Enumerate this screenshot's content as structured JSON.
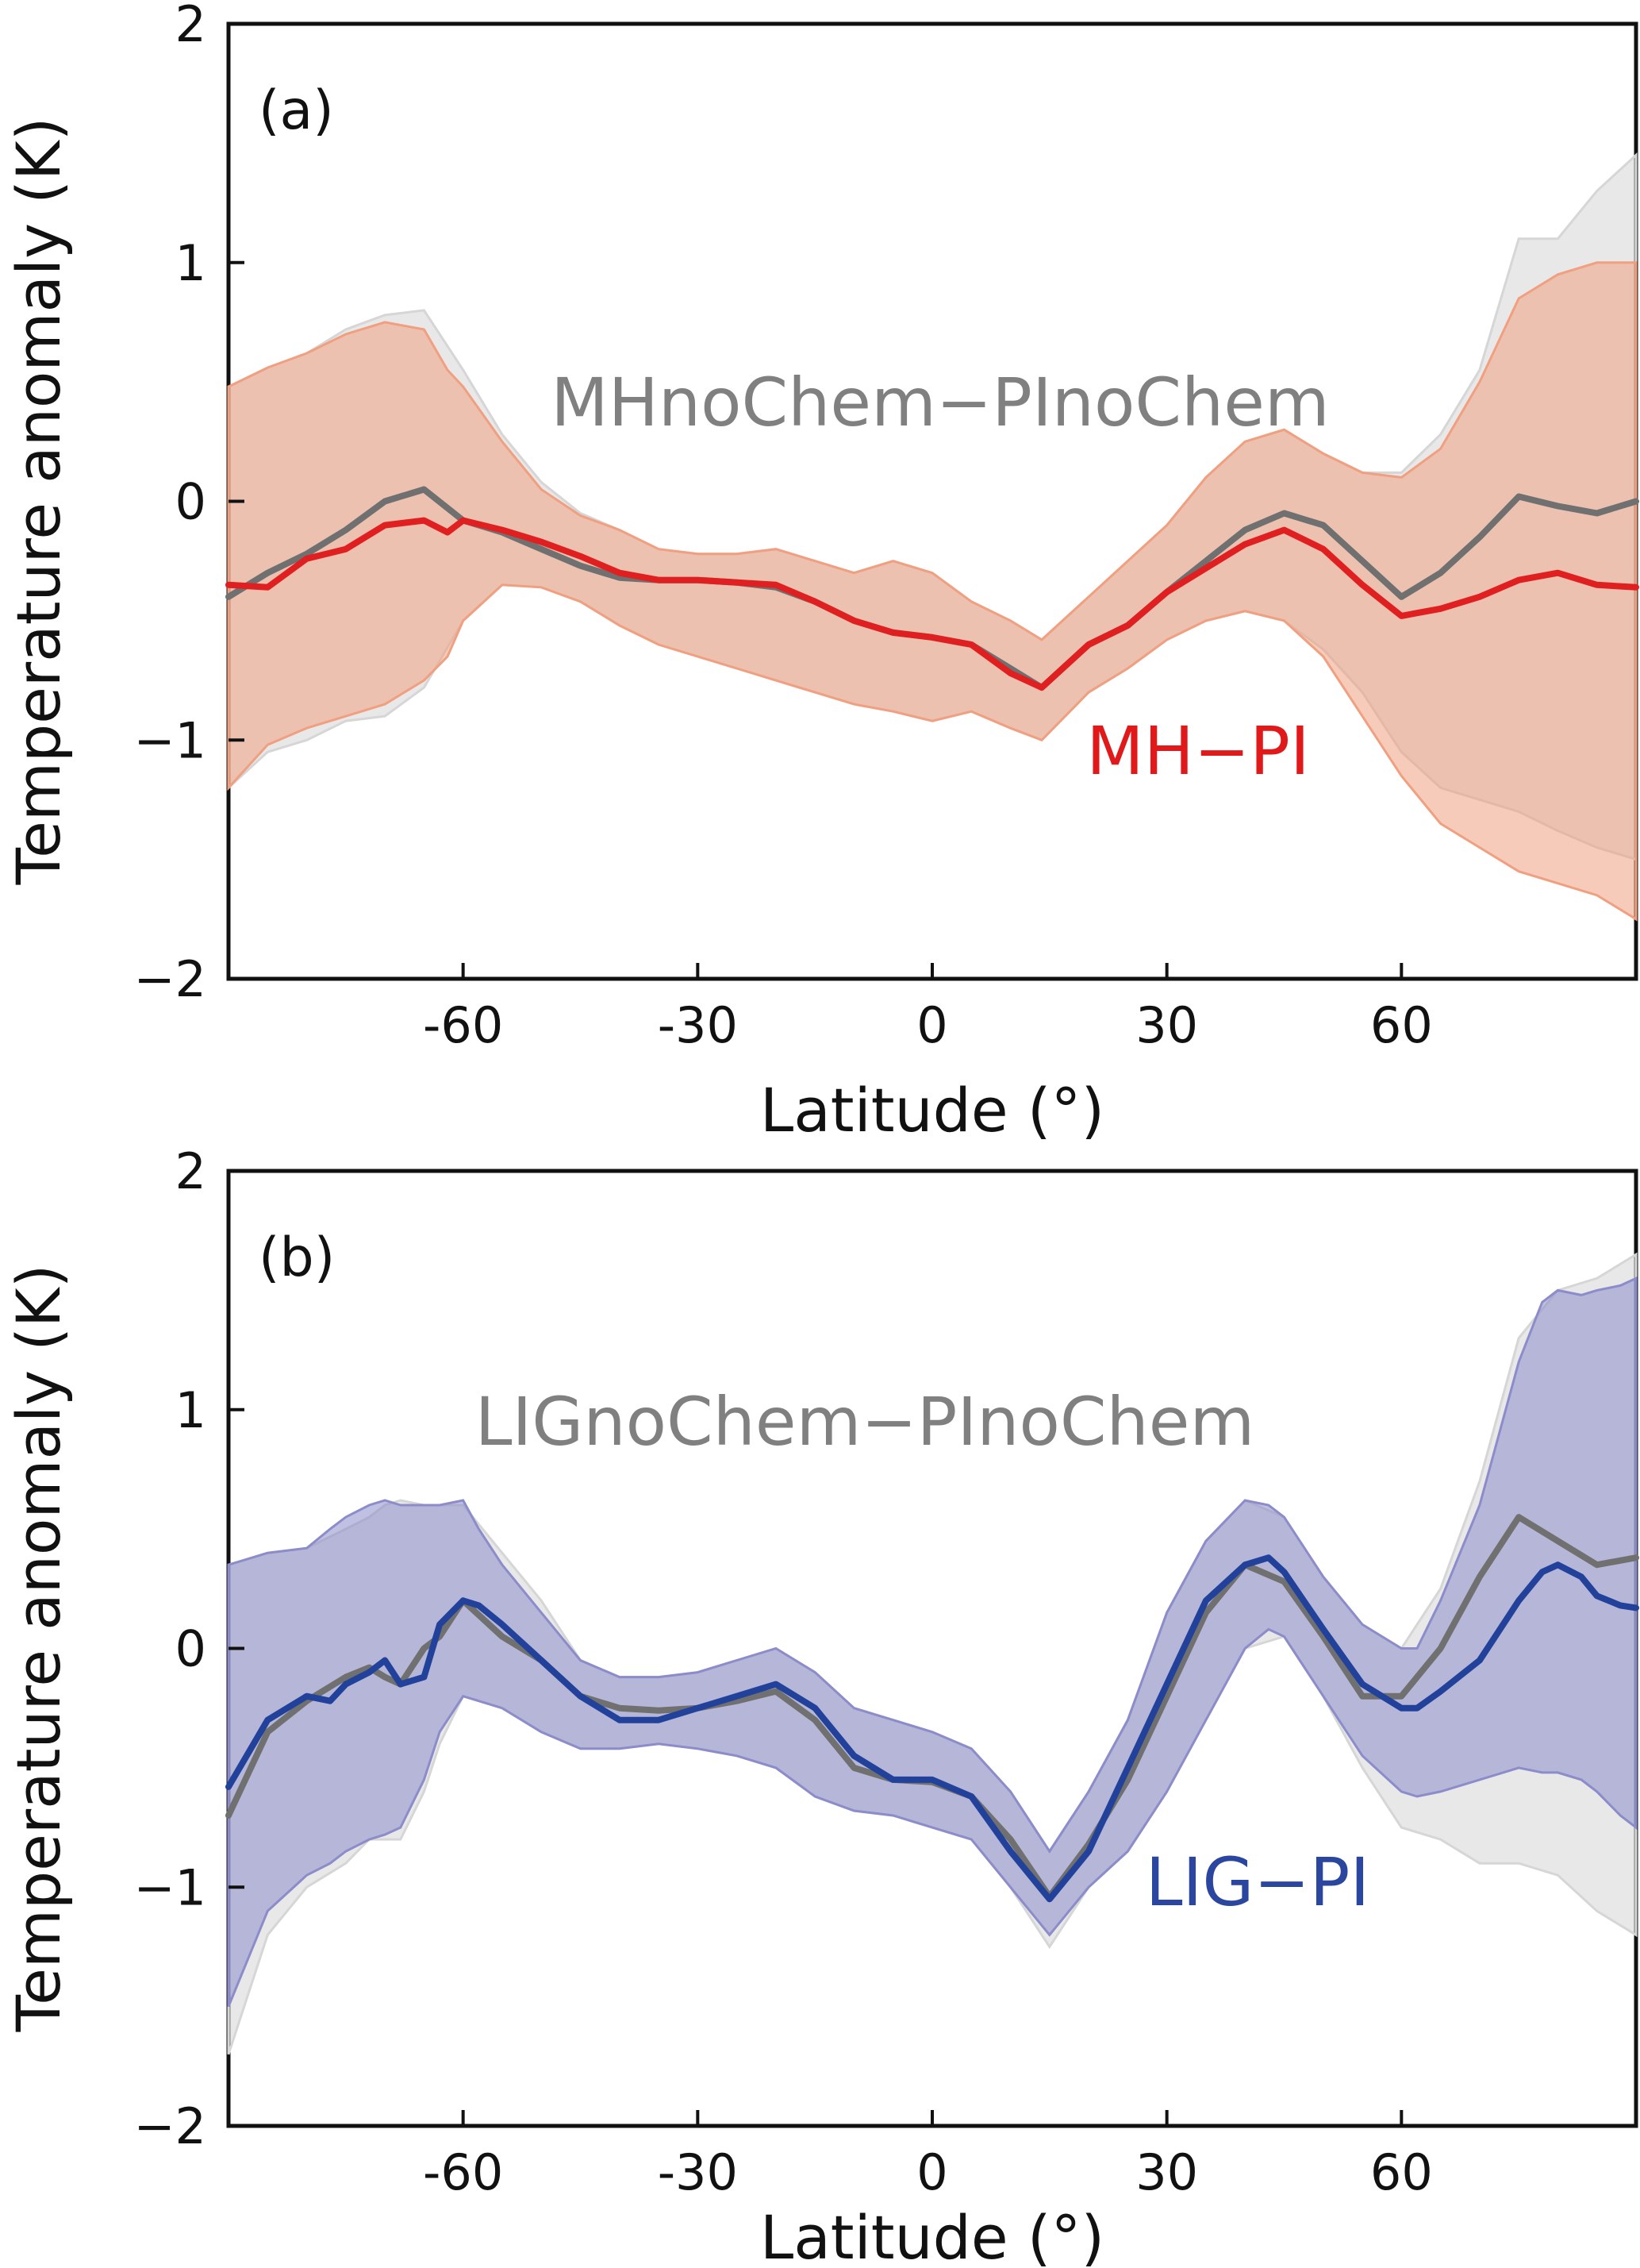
{
  "chart_data": [
    {
      "type": "line",
      "panel_label": "(a)",
      "xlabel": "Latitude (°)",
      "ylabel": "Temperature anomaly (K)",
      "xlim": [
        -90,
        90
      ],
      "ylim": [
        -2,
        2
      ],
      "x_ticks": [
        -60,
        -30,
        0,
        30,
        60
      ],
      "x_tick_labels": [
        "-60",
        "-30",
        "0",
        "30",
        "60"
      ],
      "y_ticks": [
        -2,
        -1,
        0,
        1,
        2
      ],
      "y_tick_labels": [
        "−2",
        "−1",
        "0",
        "1",
        "2"
      ],
      "series": [
        {
          "name": "MHnoChem−PInoChem",
          "label": "MHnoChem−PInoChem",
          "line_color": "#707070",
          "fill_color": "#d6d6d6",
          "label_color": "#808080",
          "label_at": [
            -27,
            0.4
          ],
          "x": [
            -90,
            -85,
            -80,
            -75,
            -70,
            -65,
            -60,
            -55,
            -50,
            -45,
            -40,
            -35,
            -30,
            -25,
            -20,
            -15,
            -10,
            -5,
            0,
            5,
            10,
            14,
            20,
            25,
            30,
            35,
            40,
            45,
            50,
            55,
            60,
            65,
            70,
            75,
            80,
            85,
            90
          ],
          "values": [
            -0.4,
            -0.3,
            -0.22,
            -0.12,
            0.0,
            0.05,
            -0.08,
            -0.13,
            -0.2,
            -0.27,
            -0.32,
            -0.33,
            -0.33,
            -0.34,
            -0.36,
            -0.42,
            -0.5,
            -0.55,
            -0.57,
            -0.6,
            -0.7,
            -0.78,
            -0.6,
            -0.52,
            -0.38,
            -0.25,
            -0.12,
            -0.05,
            -0.1,
            -0.25,
            -0.4,
            -0.3,
            -0.15,
            0.02,
            -0.02,
            -0.05,
            0.0
          ],
          "upper": [
            0.48,
            0.56,
            0.62,
            0.72,
            0.78,
            0.8,
            0.55,
            0.28,
            0.08,
            -0.05,
            -0.12,
            -0.2,
            -0.22,
            -0.22,
            -0.2,
            -0.25,
            -0.3,
            -0.25,
            -0.3,
            -0.42,
            -0.5,
            -0.58,
            -0.4,
            -0.25,
            -0.1,
            0.1,
            0.25,
            0.3,
            0.2,
            0.12,
            0.12,
            0.28,
            0.55,
            1.1,
            1.1,
            1.3,
            1.45
          ],
          "lower": [
            -1.2,
            -1.05,
            -1.0,
            -0.92,
            -0.9,
            -0.78,
            -0.5,
            -0.35,
            -0.36,
            -0.42,
            -0.52,
            -0.6,
            -0.65,
            -0.7,
            -0.75,
            -0.8,
            -0.85,
            -0.88,
            -0.92,
            -0.88,
            -0.95,
            -1.0,
            -0.8,
            -0.7,
            -0.58,
            -0.5,
            -0.46,
            -0.5,
            -0.62,
            -0.8,
            -1.05,
            -1.2,
            -1.25,
            -1.3,
            -1.38,
            -1.45,
            -1.5
          ]
        },
        {
          "name": "MH−PI",
          "label": "MH−PI",
          "line_color": "#e02020",
          "fill_color": "#f0a080",
          "label_color": "#e01a1a",
          "label_at": [
            17,
            -1.06
          ],
          "x": [
            -90,
            -85,
            -80,
            -75,
            -70,
            -65,
            -62,
            -60,
            -55,
            -50,
            -45,
            -40,
            -35,
            -30,
            -25,
            -20,
            -15,
            -10,
            -5,
            0,
            5,
            10,
            14,
            20,
            25,
            30,
            35,
            40,
            45,
            50,
            55,
            60,
            65,
            70,
            75,
            80,
            85,
            90
          ],
          "values": [
            -0.35,
            -0.36,
            -0.24,
            -0.2,
            -0.1,
            -0.08,
            -0.13,
            -0.08,
            -0.12,
            -0.17,
            -0.23,
            -0.3,
            -0.33,
            -0.33,
            -0.34,
            -0.35,
            -0.42,
            -0.5,
            -0.55,
            -0.57,
            -0.6,
            -0.72,
            -0.78,
            -0.6,
            -0.52,
            -0.38,
            -0.28,
            -0.18,
            -0.12,
            -0.2,
            -0.35,
            -0.48,
            -0.45,
            -0.4,
            -0.33,
            -0.3,
            -0.35,
            -0.36
          ],
          "upper": [
            0.48,
            0.56,
            0.62,
            0.7,
            0.75,
            0.72,
            0.55,
            0.48,
            0.25,
            0.05,
            -0.06,
            -0.12,
            -0.2,
            -0.22,
            -0.22,
            -0.2,
            -0.25,
            -0.3,
            -0.25,
            -0.3,
            -0.42,
            -0.5,
            -0.58,
            -0.4,
            -0.25,
            -0.1,
            0.1,
            0.25,
            0.3,
            0.2,
            0.12,
            0.1,
            0.22,
            0.5,
            0.85,
            0.95,
            1.0,
            1.0
          ],
          "lower": [
            -1.2,
            -1.02,
            -0.95,
            -0.9,
            -0.85,
            -0.75,
            -0.65,
            -0.5,
            -0.35,
            -0.36,
            -0.42,
            -0.52,
            -0.6,
            -0.65,
            -0.7,
            -0.75,
            -0.8,
            -0.85,
            -0.88,
            -0.92,
            -0.88,
            -0.95,
            -1.0,
            -0.8,
            -0.7,
            -0.58,
            -0.5,
            -0.46,
            -0.5,
            -0.65,
            -0.9,
            -1.15,
            -1.35,
            -1.45,
            -1.55,
            -1.6,
            -1.65,
            -1.75
          ]
        }
      ]
    },
    {
      "type": "line",
      "panel_label": "(b)",
      "xlabel": "Latitude (°)",
      "ylabel": "Temperature anomaly (K)",
      "xlim": [
        -90,
        90
      ],
      "ylim": [
        -2,
        2
      ],
      "x_ticks": [
        -60,
        -30,
        0,
        30,
        60
      ],
      "x_tick_labels": [
        "-60",
        "-30",
        "0",
        "30",
        "60"
      ],
      "y_ticks": [
        -2,
        -1,
        0,
        1,
        2
      ],
      "y_tick_labels": [
        "−2",
        "−1",
        "0",
        "1",
        "2"
      ],
      "series": [
        {
          "name": "LIGnoChem−PInoChem",
          "label": "LIGnoChem−PInoChem",
          "line_color": "#707070",
          "fill_color": "#d6d6d6",
          "label_color": "#808080",
          "label_at": [
            -31,
            0.8
          ],
          "x": [
            -90,
            -85,
            -80,
            -75,
            -72,
            -70,
            -68,
            -65,
            -63,
            -60,
            -55,
            -50,
            -45,
            -40,
            -35,
            -30,
            -25,
            -20,
            -15,
            -10,
            -5,
            0,
            5,
            10,
            15,
            20,
            25,
            30,
            35,
            40,
            45,
            50,
            55,
            60,
            65,
            70,
            75,
            80,
            85,
            90
          ],
          "values": [
            -0.7,
            -0.35,
            -0.22,
            -0.12,
            -0.08,
            -0.12,
            -0.15,
            0.0,
            0.05,
            0.2,
            0.05,
            -0.05,
            -0.2,
            -0.25,
            -0.26,
            -0.25,
            -0.22,
            -0.18,
            -0.3,
            -0.5,
            -0.55,
            -0.56,
            -0.62,
            -0.8,
            -1.04,
            -0.82,
            -0.55,
            -0.2,
            0.15,
            0.35,
            0.28,
            0.05,
            -0.2,
            -0.2,
            0.0,
            0.3,
            0.55,
            0.45,
            0.35,
            0.38
          ],
          "upper": [
            0.35,
            0.4,
            0.42,
            0.5,
            0.55,
            0.6,
            0.62,
            0.6,
            0.6,
            0.6,
            0.4,
            0.2,
            -0.05,
            -0.12,
            -0.12,
            -0.1,
            -0.05,
            0.0,
            -0.1,
            -0.25,
            -0.3,
            -0.35,
            -0.42,
            -0.6,
            -0.85,
            -0.6,
            -0.3,
            0.15,
            0.45,
            0.62,
            0.55,
            0.3,
            0.1,
            0.0,
            0.25,
            0.7,
            1.3,
            1.5,
            1.55,
            1.65
          ],
          "lower": [
            -1.7,
            -1.2,
            -1.0,
            -0.9,
            -0.8,
            -0.8,
            -0.8,
            -0.6,
            -0.4,
            -0.2,
            -0.25,
            -0.35,
            -0.42,
            -0.42,
            -0.4,
            -0.42,
            -0.45,
            -0.5,
            -0.62,
            -0.68,
            -0.7,
            -0.75,
            -0.8,
            -1.0,
            -1.25,
            -1.0,
            -0.85,
            -0.6,
            -0.3,
            0.0,
            0.05,
            -0.2,
            -0.5,
            -0.75,
            -0.8,
            -0.9,
            -0.9,
            -0.95,
            -1.1,
            -1.2
          ]
        },
        {
          "name": "LIG−PI",
          "label": "LIG−PI",
          "line_color": "#22419a",
          "fill_color": "#8c8cca",
          "label_color": "#2a469e",
          "label_at": [
            19,
            -1.0
          ],
          "x": [
            -90,
            -85,
            -80,
            -77,
            -75,
            -72,
            -70,
            -68,
            -65,
            -63,
            -60,
            -58,
            -55,
            -50,
            -45,
            -40,
            -35,
            -30,
            -25,
            -20,
            -15,
            -10,
            -5,
            0,
            5,
            10,
            15,
            20,
            25,
            30,
            35,
            40,
            43,
            45,
            50,
            55,
            60,
            62,
            65,
            70,
            75,
            78,
            80,
            83,
            85,
            88,
            90
          ],
          "values": [
            -0.58,
            -0.3,
            -0.2,
            -0.22,
            -0.15,
            -0.1,
            -0.05,
            -0.15,
            -0.12,
            0.1,
            0.2,
            0.18,
            0.1,
            -0.05,
            -0.2,
            -0.3,
            -0.3,
            -0.25,
            -0.2,
            -0.15,
            -0.25,
            -0.45,
            -0.55,
            -0.55,
            -0.62,
            -0.85,
            -1.05,
            -0.85,
            -0.5,
            -0.15,
            0.2,
            0.35,
            0.38,
            0.32,
            0.08,
            -0.15,
            -0.25,
            -0.25,
            -0.18,
            -0.05,
            0.2,
            0.32,
            0.35,
            0.3,
            0.22,
            0.18,
            0.17
          ],
          "upper": [
            0.35,
            0.4,
            0.42,
            0.5,
            0.55,
            0.6,
            0.62,
            0.6,
            0.6,
            0.6,
            0.62,
            0.5,
            0.35,
            0.15,
            -0.05,
            -0.12,
            -0.12,
            -0.1,
            -0.05,
            0.0,
            -0.1,
            -0.25,
            -0.3,
            -0.35,
            -0.42,
            -0.6,
            -0.85,
            -0.6,
            -0.3,
            0.15,
            0.45,
            0.62,
            0.6,
            0.55,
            0.3,
            0.1,
            0.0,
            0.0,
            0.2,
            0.6,
            1.2,
            1.45,
            1.5,
            1.48,
            1.5,
            1.52,
            1.55
          ],
          "lower": [
            -1.5,
            -1.1,
            -0.95,
            -0.9,
            -0.85,
            -0.8,
            -0.78,
            -0.75,
            -0.55,
            -0.35,
            -0.2,
            -0.22,
            -0.25,
            -0.35,
            -0.42,
            -0.42,
            -0.4,
            -0.42,
            -0.45,
            -0.5,
            -0.62,
            -0.68,
            -0.7,
            -0.75,
            -0.8,
            -1.0,
            -1.2,
            -1.0,
            -0.85,
            -0.6,
            -0.3,
            0.0,
            0.08,
            0.05,
            -0.2,
            -0.45,
            -0.6,
            -0.62,
            -0.6,
            -0.55,
            -0.5,
            -0.52,
            -0.52,
            -0.55,
            -0.6,
            -0.7,
            -0.75
          ]
        }
      ]
    }
  ]
}
